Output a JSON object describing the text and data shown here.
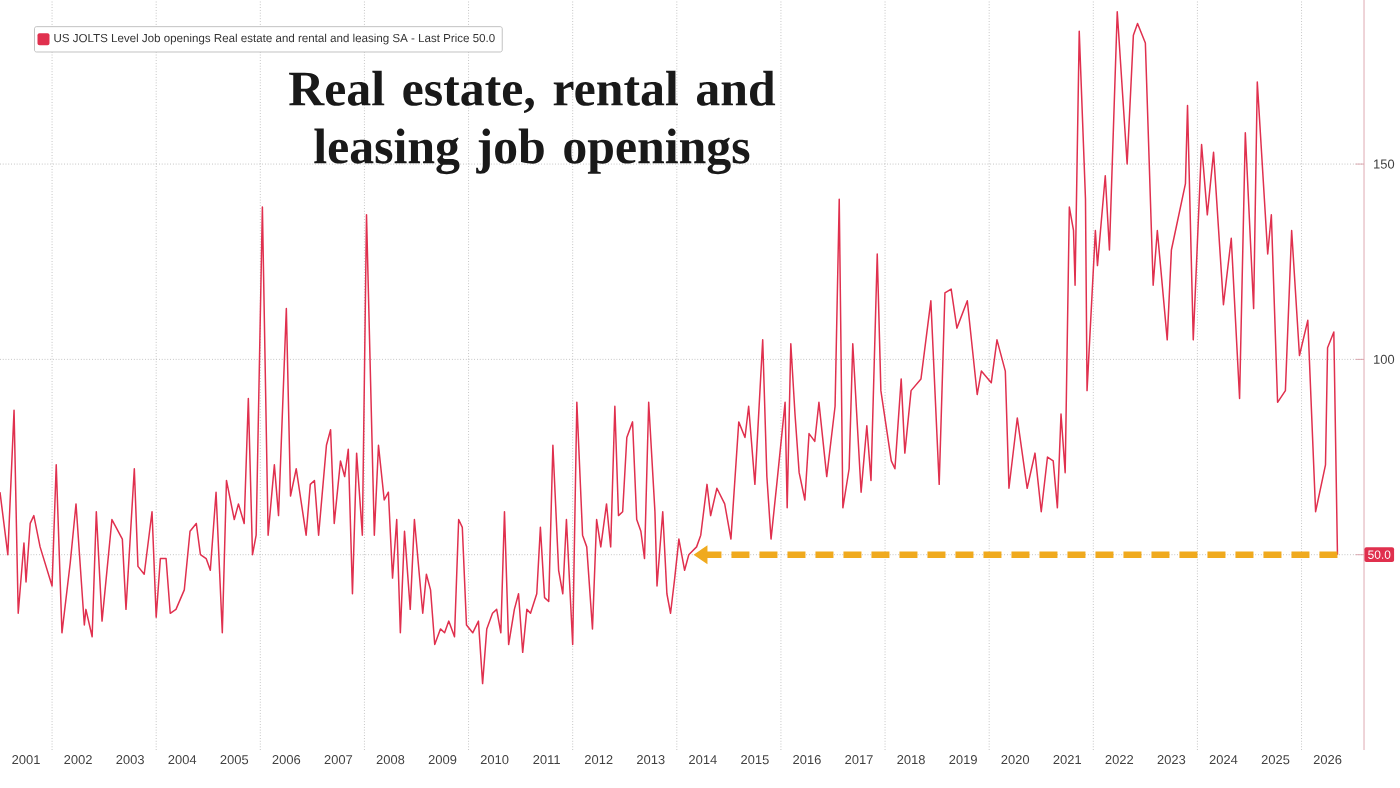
{
  "chart_data": {
    "type": "line",
    "title": "Real estate, rental and leasing job openings",
    "x": [
      2001.0,
      2001.15,
      2001.27,
      2001.35,
      2001.46,
      2001.5,
      2001.58,
      2001.65,
      2001.77,
      2002.0,
      2002.08,
      2002.19,
      2002.35,
      2002.46,
      2002.62,
      2002.65,
      2002.77,
      2002.85,
      2002.96,
      2003.15,
      2003.35,
      2003.42,
      2003.58,
      2003.65,
      2003.77,
      2003.92,
      2004.0,
      2004.08,
      2004.19,
      2004.27,
      2004.38,
      2004.54,
      2004.65,
      2004.77,
      2004.85,
      2004.96,
      2005.04,
      2005.15,
      2005.27,
      2005.35,
      2005.5,
      2005.58,
      2005.69,
      2005.77,
      2005.85,
      2005.92,
      2006.04,
      2006.15,
      2006.27,
      2006.35,
      2006.5,
      2006.58,
      2006.69,
      2006.88,
      2006.96,
      2007.04,
      2007.12,
      2007.27,
      2007.35,
      2007.42,
      2007.54,
      2007.62,
      2007.69,
      2007.77,
      2007.85,
      2007.96,
      2008.04,
      2008.19,
      2008.27,
      2008.38,
      2008.46,
      2008.54,
      2008.62,
      2008.69,
      2008.77,
      2008.88,
      2008.96,
      2009.12,
      2009.19,
      2009.27,
      2009.35,
      2009.46,
      2009.54,
      2009.62,
      2009.73,
      2009.81,
      2009.88,
      2009.96,
      2010.08,
      2010.19,
      2010.27,
      2010.35,
      2010.46,
      2010.54,
      2010.62,
      2010.69,
      2010.77,
      2010.88,
      2010.96,
      2011.04,
      2011.12,
      2011.19,
      2011.31,
      2011.38,
      2011.46,
      2011.54,
      2011.62,
      2011.73,
      2011.81,
      2011.88,
      2012.0,
      2012.08,
      2012.19,
      2012.27,
      2012.38,
      2012.46,
      2012.54,
      2012.65,
      2012.73,
      2012.81,
      2012.88,
      2012.96,
      2013.04,
      2013.15,
      2013.23,
      2013.31,
      2013.38,
      2013.46,
      2013.58,
      2013.62,
      2013.73,
      2013.81,
      2013.88,
      2013.96,
      2014.04,
      2014.15,
      2014.23,
      2014.38,
      2014.46,
      2014.58,
      2014.65,
      2014.77,
      2014.92,
      2015.04,
      2015.19,
      2015.31,
      2015.38,
      2015.5,
      2015.65,
      2015.73,
      2015.81,
      2015.92,
      2016.08,
      2016.12,
      2016.19,
      2016.27,
      2016.35,
      2016.46,
      2016.54,
      2016.65,
      2016.73,
      2016.88,
      2017.04,
      2017.12,
      2017.19,
      2017.31,
      2017.38,
      2017.54,
      2017.65,
      2017.73,
      2017.85,
      2017.92,
      2018.12,
      2018.19,
      2018.31,
      2018.38,
      2018.5,
      2018.69,
      2018.88,
      2019.04,
      2019.15,
      2019.27,
      2019.38,
      2019.58,
      2019.77,
      2019.85,
      2020.04,
      2020.15,
      2020.31,
      2020.38,
      2020.54,
      2020.73,
      2020.88,
      2021.0,
      2021.12,
      2021.23,
      2021.31,
      2021.38,
      2021.46,
      2021.54,
      2021.62,
      2021.65,
      2021.73,
      2021.85,
      2021.88,
      2022.04,
      2022.08,
      2022.23,
      2022.31,
      2022.46,
      2022.65,
      2022.77,
      2022.85,
      2023.0,
      2023.15,
      2023.23,
      2023.42,
      2023.5,
      2023.77,
      2023.81,
      2023.92,
      2024.08,
      2024.19,
      2024.31,
      2024.5,
      2024.65,
      2024.81,
      2024.92,
      2025.08,
      2025.15,
      2025.35,
      2025.42,
      2025.54,
      2025.69,
      2025.81,
      2025.96,
      2026.12,
      2026.27,
      2026.46,
      2026.5,
      2026.62,
      2026.69
    ],
    "series": [
      {
        "name": "US JOLTS Level Job openings Real estate and rental and leasing SA - Last Price 50.0",
        "color": "#e0304e",
        "values": [
          66,
          50,
          87,
          35,
          53,
          43,
          58,
          60,
          52,
          42,
          73,
          30,
          48,
          63,
          32,
          36,
          29,
          61,
          33,
          59,
          54,
          36,
          72,
          47,
          45,
          61,
          34,
          49,
          49,
          35,
          36,
          41,
          56,
          58,
          50,
          49,
          46,
          66,
          30,
          69,
          59,
          63,
          58,
          90,
          50,
          55,
          139,
          55,
          73,
          60,
          113,
          65,
          72,
          55,
          68,
          69,
          55,
          78,
          82,
          58,
          74,
          70,
          77,
          40,
          76,
          55,
          137,
          55,
          78,
          64,
          66,
          44,
          59,
          30,
          56,
          36,
          59,
          35,
          45,
          41,
          27,
          31,
          30,
          33,
          29,
          59,
          57,
          32,
          30,
          33,
          17,
          31,
          35,
          36,
          30,
          61,
          27,
          36,
          40,
          25,
          36,
          35,
          40,
          57,
          39,
          38,
          78,
          46,
          40,
          59,
          27,
          89,
          55,
          52,
          31,
          59,
          52,
          63,
          52,
          88,
          60,
          61,
          80,
          84,
          59,
          56,
          49,
          89,
          61,
          42,
          61,
          40,
          35,
          44,
          54,
          46,
          50,
          52,
          55,
          68,
          60,
          67,
          63,
          54,
          84,
          80,
          88,
          68,
          105,
          70,
          54,
          68,
          89,
          62,
          104,
          86,
          71,
          64,
          81,
          79,
          89,
          70,
          88,
          141,
          62,
          72,
          104,
          66,
          83,
          69,
          127,
          92,
          74,
          72,
          95,
          76,
          92,
          95,
          115,
          68,
          117,
          118,
          108,
          115,
          91,
          97,
          94,
          105,
          97,
          67,
          85,
          67,
          76,
          61,
          75,
          74,
          62,
          86,
          71,
          139,
          133,
          119,
          184,
          141,
          92,
          133,
          124,
          147,
          128,
          189,
          150,
          183,
          186,
          181,
          119,
          133,
          105,
          128,
          145,
          165,
          105,
          155,
          137,
          153,
          114,
          131,
          90,
          158,
          113,
          171,
          127,
          137,
          89,
          92,
          133,
          101,
          110,
          61,
          73,
          103,
          107,
          50
        ]
      }
    ],
    "xlim": [
      2001,
      2027.2
    ],
    "ylim": [
      0,
      192
    ],
    "xticks": [
      {
        "value": 2001.5,
        "label": "2001"
      },
      {
        "value": 2002.5,
        "label": "2002"
      },
      {
        "value": 2003.5,
        "label": "2003"
      },
      {
        "value": 2004.5,
        "label": "2004"
      },
      {
        "value": 2005.5,
        "label": "2005"
      },
      {
        "value": 2006.5,
        "label": "2006"
      },
      {
        "value": 2007.5,
        "label": "2007"
      },
      {
        "value": 2008.5,
        "label": "2008"
      },
      {
        "value": 2009.5,
        "label": "2009"
      },
      {
        "value": 2010.5,
        "label": "2010"
      },
      {
        "value": 2011.5,
        "label": "2011"
      },
      {
        "value": 2012.5,
        "label": "2012"
      },
      {
        "value": 2013.5,
        "label": "2013"
      },
      {
        "value": 2014.5,
        "label": "2014"
      },
      {
        "value": 2015.5,
        "label": "2015"
      },
      {
        "value": 2016.5,
        "label": "2016"
      },
      {
        "value": 2017.5,
        "label": "2017"
      },
      {
        "value": 2018.5,
        "label": "2018"
      },
      {
        "value": 2019.5,
        "label": "2019"
      },
      {
        "value": 2020.5,
        "label": "2020"
      },
      {
        "value": 2021.5,
        "label": "2021"
      },
      {
        "value": 2022.5,
        "label": "2022"
      },
      {
        "value": 2023.5,
        "label": "2023"
      },
      {
        "value": 2024.5,
        "label": "2024"
      },
      {
        "value": 2025.5,
        "label": "2025"
      },
      {
        "value": 2026.5,
        "label": "2026"
      },
      {
        "value": 2002,
        "label": null
      },
      {
        "value": 2004,
        "label": null
      },
      {
        "value": 2006,
        "label": null
      },
      {
        "value": 2008,
        "label": null
      },
      {
        "value": 2010,
        "label": null
      },
      {
        "value": 2012,
        "label": null
      },
      {
        "value": 2014,
        "label": null
      },
      {
        "value": 2016,
        "label": null
      },
      {
        "value": 2018,
        "label": null
      },
      {
        "value": 2020,
        "label": null
      },
      {
        "value": 2022,
        "label": null
      },
      {
        "value": 2024,
        "label": null
      },
      {
        "value": 2026,
        "label": null
      }
    ],
    "yticks": [
      {
        "value": 50,
        "label": null
      },
      100,
      150
    ],
    "annotations": [
      "50.0"
    ],
    "ref_lines": [
      {
        "axis": "y",
        "value": 50,
        "color": "#f0aa1e",
        "line_style": "dashed"
      }
    ],
    "grid": true,
    "legend": "top left"
  }
}
